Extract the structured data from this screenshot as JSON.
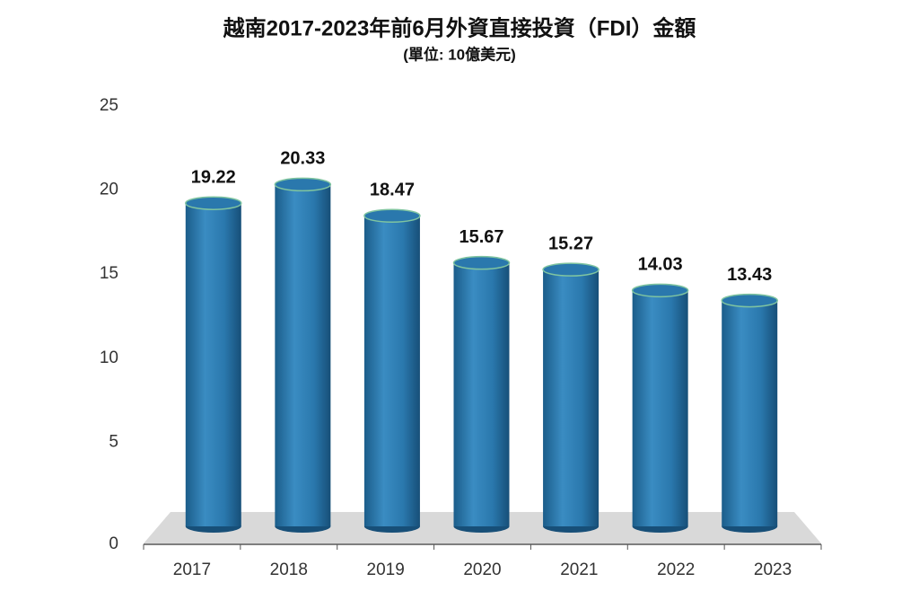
{
  "chart_data": {
    "type": "bar",
    "title": "越南2017-2023年前6月外資直接投資（FDI）金額",
    "subtitle": "(單位: 10億美元)",
    "categories": [
      "2017",
      "2018",
      "2019",
      "2020",
      "2021",
      "2022",
      "2023"
    ],
    "values": [
      19.22,
      20.33,
      18.47,
      15.67,
      15.27,
      14.03,
      13.43
    ],
    "color": "#2a78ad",
    "ylim": [
      0,
      25
    ],
    "yticks": [
      0,
      5,
      10,
      15,
      20,
      25
    ],
    "grid": false
  }
}
